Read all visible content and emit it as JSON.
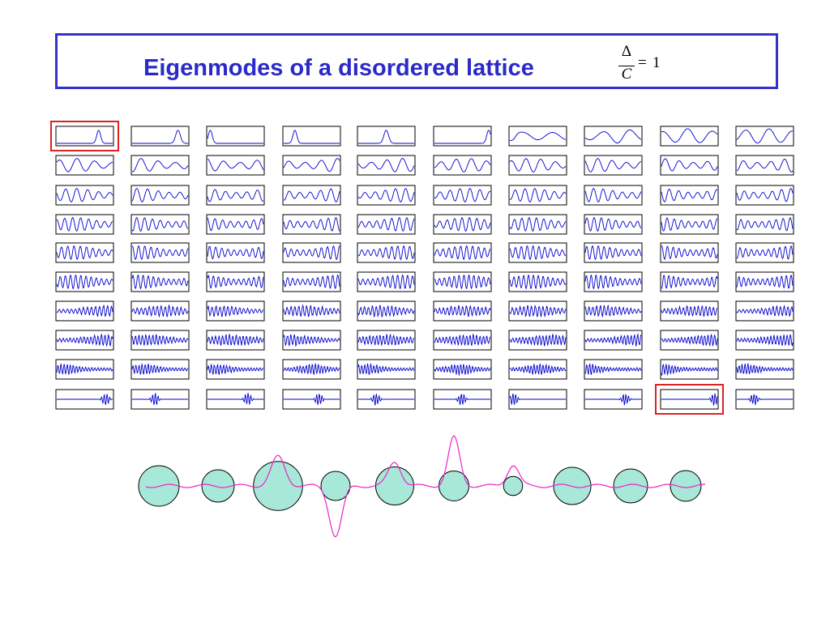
{
  "title": {
    "text": "Eigenmodes of a disordered lattice",
    "formula": {
      "numerator": "Δ",
      "denominator": "C",
      "equals": "=",
      "value": "1"
    }
  },
  "grid": {
    "rows": 10,
    "cols": 10,
    "trace_color": "#0000cc",
    "highlight_color": "#dd2222",
    "highlighted": [
      {
        "row": 0,
        "col": 0
      },
      {
        "row": 9,
        "col": 8
      }
    ]
  },
  "lattice": {
    "sites": 10,
    "radii_relative": [
      1.0,
      0.8,
      1.21,
      0.72,
      0.94,
      0.74,
      0.47,
      0.92,
      0.84,
      0.76
    ],
    "site_color": "#a8e8d8",
    "wave_color": "#ee22cc"
  }
}
